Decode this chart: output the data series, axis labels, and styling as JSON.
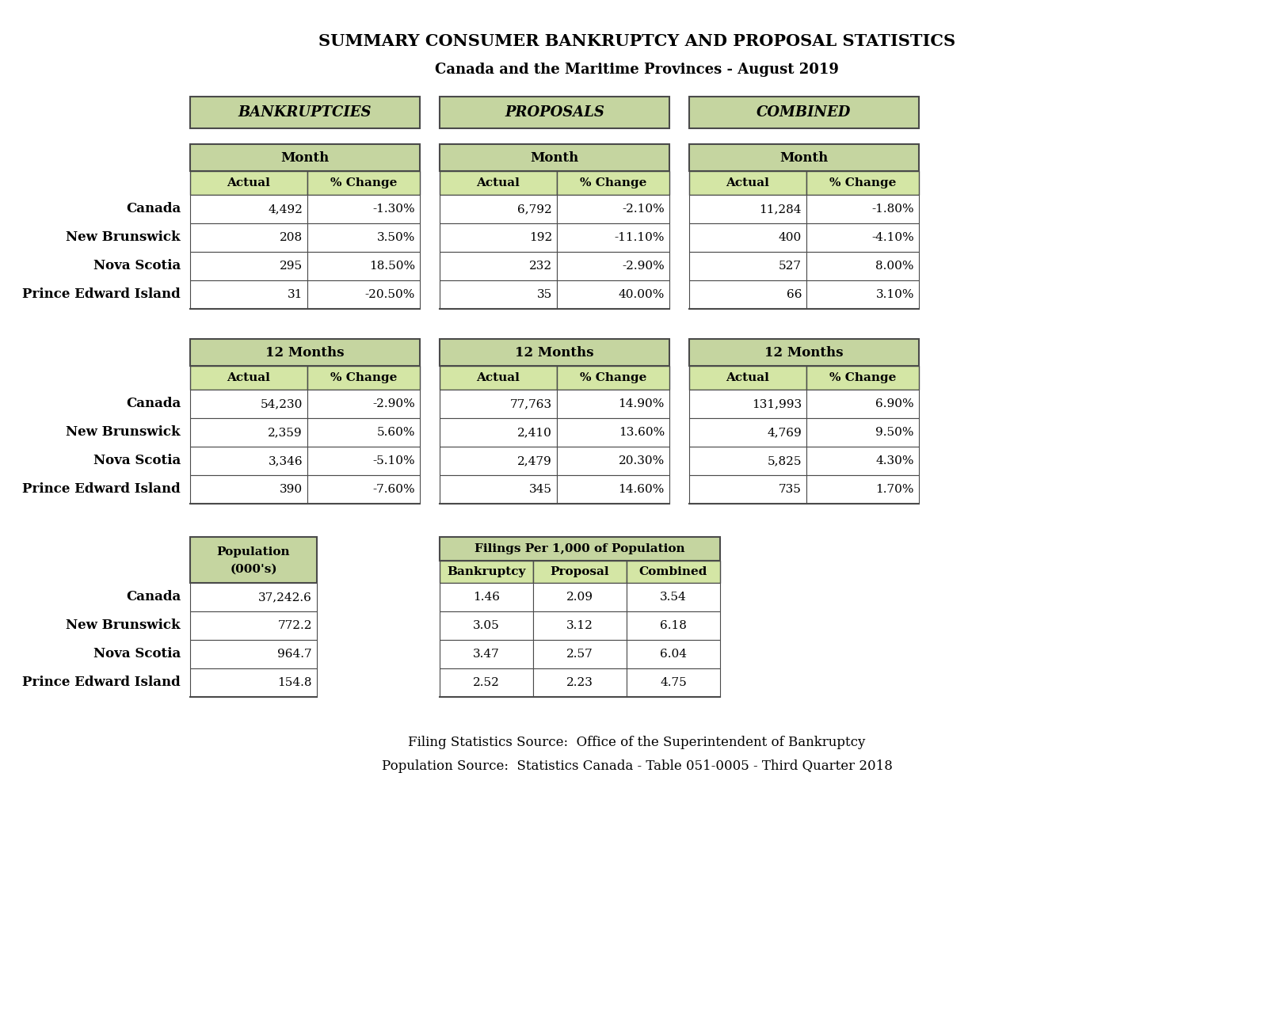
{
  "title1": "SUMMARY CONSUMER BANKRUPTCY AND PROPOSAL STATISTICS",
  "title2": "Canada and the Maritime Provinces - August 2019",
  "background_color": "#ffffff",
  "header_bg": "#c5d5a0",
  "light_green": "#d4e6a5",
  "rows": [
    "Canada",
    "New Brunswick",
    "Nova Scotia",
    "Prince Edward Island"
  ],
  "month_bankruptcies": {
    "actual": [
      "4,492",
      "208",
      "295",
      "31"
    ],
    "pct_change": [
      "-1.30%",
      "3.50%",
      "18.50%",
      "-20.50%"
    ]
  },
  "month_proposals": {
    "actual": [
      "6,792",
      "192",
      "232",
      "35"
    ],
    "pct_change": [
      "-2.10%",
      "-11.10%",
      "-2.90%",
      "40.00%"
    ]
  },
  "month_combined": {
    "actual": [
      "11,284",
      "400",
      "527",
      "66"
    ],
    "pct_change": [
      "-1.80%",
      "-4.10%",
      "8.00%",
      "3.10%"
    ]
  },
  "twelve_bankruptcies": {
    "actual": [
      "54,230",
      "2,359",
      "3,346",
      "390"
    ],
    "pct_change": [
      "-2.90%",
      "5.60%",
      "-5.10%",
      "-7.60%"
    ]
  },
  "twelve_proposals": {
    "actual": [
      "77,763",
      "2,410",
      "2,479",
      "345"
    ],
    "pct_change": [
      "14.90%",
      "13.60%",
      "20.30%",
      "14.60%"
    ]
  },
  "twelve_combined": {
    "actual": [
      "131,993",
      "4,769",
      "5,825",
      "735"
    ],
    "pct_change": [
      "6.90%",
      "9.50%",
      "4.30%",
      "1.70%"
    ]
  },
  "population": [
    "37,242.6",
    "772.2",
    "964.7",
    "154.8"
  ],
  "filings_bankruptcy": [
    "1.46",
    "3.05",
    "3.47",
    "2.52"
  ],
  "filings_proposal": [
    "2.09",
    "3.12",
    "2.57",
    "2.23"
  ],
  "filings_combined": [
    "3.54",
    "6.18",
    "6.04",
    "4.75"
  ],
  "footer1": "Filing Statistics Source:  Office of the Superintendent of Bankruptcy",
  "footer2": "Population Source:  Statistics Canada - Table 051-0005 - Third Quarter 2018"
}
